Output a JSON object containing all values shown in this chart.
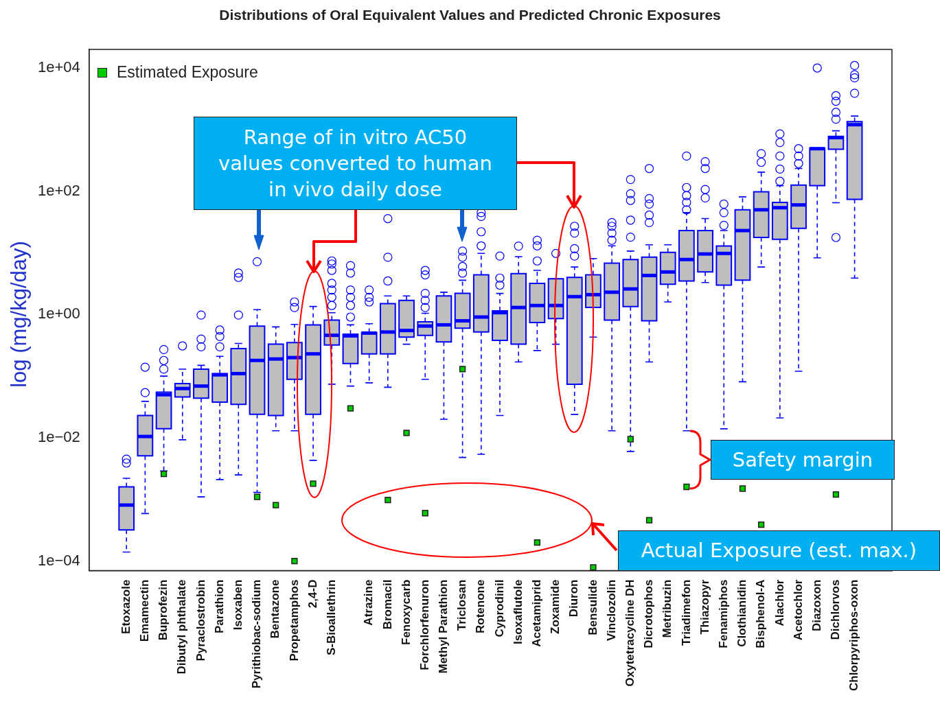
{
  "chart_data": {
    "type": "box",
    "title": "Distributions of Oral Equivalent Values and Predicted Chronic Exposures",
    "ylabel": "log (mg/kg/day)",
    "categories": [
      "Etoxazole",
      "Emamectin",
      "Buprofezin",
      "Dibutyl phthalate",
      "Pyraclostrobin",
      "Parathion",
      "Isoxaben",
      "Pyrithiobac-sodium",
      "Bentazone",
      "Propetamphos",
      "2,4-D",
      "S-Bioallethrin",
      null,
      "Atrazine",
      "Bromacil",
      "Fenoxycarb",
      "Forchlorfenuron",
      "Methyl Parathion",
      "Triclosan",
      "Rotenone",
      "Cyprodinil",
      "Isoxaflutole",
      "Acetamiprid",
      "Zoxamide",
      "Diuron",
      "Bensulide",
      "Vinclozolin",
      "Oxytetracycline DH",
      "Dicrotophos",
      "Metribuzin",
      "Triadimefon",
      "Thiazopyr",
      "Fenamiphos",
      "Clothianidin",
      "Bisphenol-A",
      "Alachlor",
      "Acetochlor",
      "Diazoxon",
      "Dichlorvos",
      "Chlorpyriphos-oxon"
    ],
    "series": [
      {
        "type": "box",
        "color": "#0000ff",
        "boxes": [
          {
            "low": 0.00014,
            "q1": 0.00032,
            "median": 0.00081,
            "q3": 0.0016,
            "high": 0.0022,
            "outliers": [
              0.0045,
              0.0039
            ]
          },
          {
            "low": 0.00059,
            "q1": 0.0051,
            "median": 0.0105,
            "q3": 0.023,
            "high": 0.039,
            "outliers": [
              0.14,
              0.054
            ]
          },
          {
            "low": 0.0029,
            "q1": 0.014,
            "median": 0.05,
            "q3": 0.055,
            "high": 0.1,
            "outliers": [
              0.27,
              0.18,
              0.13
            ]
          },
          {
            "low": 0.0093,
            "q1": 0.046,
            "median": 0.063,
            "q3": 0.076,
            "high": 0.13,
            "outliers": [
              0.31
            ]
          },
          {
            "low": 0.0011,
            "q1": 0.044,
            "median": 0.069,
            "q3": 0.13,
            "high": 0.15,
            "outliers": [
              0.98,
              0.4,
              0.3
            ]
          },
          {
            "low": 0.0021,
            "q1": 0.038,
            "median": 0.105,
            "q3": 0.11,
            "high": 0.21,
            "outliers": [
              0.56,
              0.44,
              0.3
            ]
          },
          {
            "low": 0.0025,
            "q1": 0.035,
            "median": 0.11,
            "q3": 0.28,
            "high": 0.34,
            "outliers": [
              0.98,
              4.7,
              4.0
            ]
          },
          {
            "low": 0.0013,
            "q1": 0.024,
            "median": 0.18,
            "q3": 0.65,
            "high": 1.2,
            "outliers": [
              7.2
            ]
          },
          {
            "low": 0.013,
            "q1": 0.023,
            "median": 0.19,
            "q3": 0.33,
            "high": 0.63
          },
          {
            "low": 0.013,
            "q1": 0.089,
            "median": 0.2,
            "q3": 0.35,
            "high": 0.69,
            "outliers": [
              1.6,
              1.3
            ]
          },
          {
            "low": 0.0043,
            "q1": 0.024,
            "median": 0.23,
            "q3": 0.68,
            "high": 1.35
          },
          {
            "low": 0.074,
            "q1": 0.32,
            "median": 0.46,
            "q3": 0.81,
            "high": 1.07,
            "outliers": [
              1.4,
              1.9,
              2.5,
              3.2,
              5.2,
              6.6,
              7.4
            ]
          },
          {
            "low": 0.069,
            "q1": 0.16,
            "median": 0.45,
            "q3": 0.48,
            "high": 0.68,
            "outliers": [
              0.91,
              1.4,
              1.9,
              2.5,
              4.7,
              6.2
            ]
          },
          {
            "low": 0.078,
            "q1": 0.23,
            "median": 0.5,
            "q3": 0.51,
            "high": 0.71,
            "outliers": [
              2.5,
              1.9,
              1.6
            ]
          },
          {
            "low": 0.066,
            "q1": 0.23,
            "median": 0.52,
            "q3": 1.5,
            "high": 2.0,
            "outliers": [
              3.5,
              8.5,
              36
            ]
          },
          {
            "low": 0.33,
            "q1": 0.43,
            "median": 0.55,
            "q3": 1.7,
            "high": 2.0
          },
          {
            "low": 0.089,
            "q1": 0.46,
            "median": 0.65,
            "q3": 0.76,
            "high": 1.05,
            "outliers": [
              1.3,
              1.7,
              2.2,
              4.4,
              5.2
            ]
          },
          {
            "low": 0.02,
            "q1": 0.36,
            "median": 0.68,
            "q3": 2.0,
            "high": 2.3
          },
          {
            "low": 0.0048,
            "q1": 0.6,
            "median": 0.79,
            "q3": 2.2,
            "high": 3.6,
            "outliers": [
              4.7,
              6.0,
              8.5,
              10.7
            ]
          },
          {
            "low": 0.0054,
            "q1": 0.52,
            "median": 0.91,
            "q3": 4.4,
            "high": 9.8,
            "outliers": [
              13,
              22,
              39,
              45
            ]
          },
          {
            "low": 0.023,
            "q1": 0.38,
            "median": 1.07,
            "q3": 1.15,
            "high": 2.2,
            "outliers": [
              3.0,
              3.9,
              8.9
            ]
          },
          {
            "low": 0.17,
            "q1": 0.33,
            "median": 1.3,
            "q3": 4.6,
            "high": 8.7,
            "outliers": [
              12.9
            ]
          },
          {
            "low": 0.26,
            "q1": 0.74,
            "median": 1.4,
            "q3": 3.2,
            "high": 5.2,
            "outliers": [
              7.4,
              13,
              16
            ]
          },
          {
            "low": 0.33,
            "q1": 0.86,
            "median": 1.4,
            "q3": 3.8,
            "high": 3.8,
            "outliers": [
              9.8
            ]
          },
          {
            "low": 0.024,
            "q1": 0.074,
            "median": 1.95,
            "q3": 4.0,
            "high": 5.9,
            "outliers": [
              8.9,
              11.7,
              21,
              27
            ]
          },
          {
            "low": 0.43,
            "q1": 1.3,
            "median": 2.1,
            "q3": 4.4,
            "high": 8.1
          },
          {
            "low": 0.013,
            "q1": 0.81,
            "median": 2.3,
            "q3": 6.8,
            "high": 13,
            "outliers": [
              16,
              21,
              27,
              31
            ]
          },
          {
            "low": 0.006,
            "q1": 1.35,
            "median": 2.6,
            "q3": 7.8,
            "high": 10.7,
            "outliers": [
              18,
              34,
              71,
              91,
              155
            ]
          },
          {
            "low": 0.17,
            "q1": 0.79,
            "median": 4.3,
            "q3": 8.5,
            "high": 13.5,
            "outliers": [
              234,
              76,
              62,
              41,
              31
            ]
          },
          {
            "low": 1.6,
            "q1": 3.1,
            "median": 4.9,
            "q3": 10.2,
            "high": 13.5
          },
          {
            "low": 0.013,
            "q1": 3.5,
            "median": 7.8,
            "q3": 23,
            "high": 45,
            "outliers": [
              372,
              115,
              85,
              66,
              50
            ]
          },
          {
            "low": 3.3,
            "q1": 4.9,
            "median": 9.6,
            "q3": 23,
            "high": 36,
            "outliers": [
              302,
              234,
              107,
              78
            ]
          },
          {
            "low": 0.014,
            "q1": 3.0,
            "median": 9.8,
            "q3": 12.9,
            "high": 23,
            "outliers": [
              62,
              45,
              28
            ]
          },
          {
            "low": 0.081,
            "q1": 3.6,
            "median": 23,
            "q3": 50,
            "high": 81
          },
          {
            "low": 5.9,
            "q1": 17.8,
            "median": 50,
            "q3": 98,
            "high": 204,
            "outliers": [
              407,
              295
            ]
          },
          {
            "low": 0.021,
            "q1": 16.6,
            "median": 54,
            "q3": 66,
            "high": 123,
            "outliers": [
              145,
              229,
              372,
              617,
              851
            ]
          },
          {
            "low": 0.12,
            "q1": 25,
            "median": 60,
            "q3": 126,
            "high": 234,
            "outliers": [
              490,
              372,
              282
            ]
          },
          {
            "low": 8.3,
            "q1": 123,
            "median": 490,
            "q3": 501,
            "high": 501,
            "outliers": [
              10000
            ]
          },
          {
            "low": 65,
            "q1": 479,
            "median": 741,
            "q3": 776,
            "high": 955,
            "outliers": [
              3548,
              2884,
              1905,
              1479,
              17.8
            ]
          },
          {
            "low": 3.9,
            "q1": 74,
            "median": 1202,
            "q3": 1349,
            "high": 1660,
            "outliers": [
              10965,
              7762,
              6918,
              3890
            ]
          }
        ]
      },
      {
        "type": "scatter",
        "name": "Estimated Exposure",
        "color": "#00cc00",
        "values": [
          null,
          null,
          0.0026,
          null,
          null,
          null,
          null,
          0.0011,
          0.00081,
          0.0001,
          0.0018,
          null,
          0.03,
          null,
          0.00098,
          0.012,
          0.0006,
          null,
          0.13,
          null,
          null,
          null,
          0.0002,
          null,
          null,
          7.9e-05,
          null,
          0.0095,
          0.00046,
          null,
          0.0016,
          null,
          null,
          0.0015,
          0.00039,
          null,
          null,
          null,
          0.0012,
          null
        ]
      }
    ],
    "log": true,
    "ylim": [
      7e-05,
      20000
    ],
    "yticks": [
      {
        "value": 0.0001,
        "label": "1e−04"
      },
      {
        "value": 0.01,
        "label": "1e−02"
      },
      {
        "value": 1,
        "label": "1e+00"
      },
      {
        "value": 100,
        "label": "1e+02"
      },
      {
        "value": 10000,
        "label": "1e+04"
      }
    ],
    "legend": "top left",
    "marker": "square",
    "annotations": [
      "Range of in vitro AC50 values converted to human in vivo daily dose",
      "Safety margin",
      "Actual Exposure (est. max.)"
    ]
  }
}
